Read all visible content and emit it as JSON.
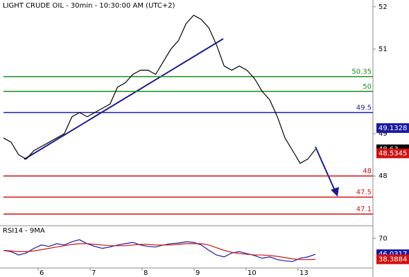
{
  "chart_data": [
    {
      "type": "line",
      "title": "LIGHT CRUDE OIL - 30min - 10:30:00 AM (UTC+2)",
      "x_labels": [
        "6",
        "7",
        "8",
        "9",
        "10",
        "13"
      ],
      "ylim": [
        46.84,
        52.16
      ],
      "yticks": [
        48,
        49,
        51,
        52
      ],
      "series": [
        {
          "color": "#000000",
          "values": [
            48.9,
            48.8,
            48.5,
            48.4,
            48.6,
            48.7,
            48.8,
            48.9,
            49.0,
            49.4,
            49.5,
            49.4,
            49.5,
            49.6,
            49.7,
            50.1,
            50.2,
            50.4,
            50.5,
            50.5,
            50.4,
            50.7,
            51.0,
            51.2,
            51.6,
            51.8,
            51.7,
            51.5,
            51.1,
            50.6,
            50.5,
            50.6,
            50.5,
            50.3,
            50.0,
            49.8,
            49.4,
            48.9,
            48.6,
            48.3,
            48.4,
            48.63
          ]
        }
      ],
      "levels": [
        {
          "value": 50.35,
          "color": "#1a8a1a"
        },
        {
          "value": 50,
          "color": "#1a8a1a"
        },
        {
          "value": 49.5,
          "color": "#1a1aa0"
        },
        {
          "value": 48,
          "color": "#d01010"
        },
        {
          "value": 47.5,
          "color": "#d01010"
        },
        {
          "value": 47.1,
          "color": "#d01010"
        }
      ],
      "tags": [
        {
          "value": 49.1328,
          "color": "#1a1aa0"
        },
        {
          "value": 48.63,
          "color": "#000000"
        },
        {
          "value": 48.5345,
          "color": "#d01010"
        }
      ]
    },
    {
      "type": "line",
      "title": "RSI14 - 9MA",
      "ylim": [
        20,
        85
      ],
      "yticks": [
        70
      ],
      "series": [
        {
          "color": "#1a1aa0",
          "values": [
            52,
            50,
            45,
            48,
            55,
            60,
            58,
            62,
            60,
            65,
            68,
            62,
            58,
            55,
            57,
            60,
            62,
            64,
            60,
            58,
            57,
            60,
            62,
            63,
            65,
            64,
            60,
            52,
            45,
            42,
            48,
            50,
            47,
            44,
            40,
            42,
            38,
            36,
            35,
            40,
            42,
            46.0317
          ]
        },
        {
          "color": "#d01010",
          "values": [
            52,
            51,
            50,
            50,
            51,
            53,
            55,
            57,
            59,
            61,
            62,
            62,
            61,
            60,
            59,
            59,
            59,
            60,
            61,
            61,
            60,
            60,
            60,
            61,
            62,
            62,
            62,
            60,
            56,
            52,
            49,
            47,
            46,
            45,
            45,
            44,
            43,
            41,
            39,
            38,
            38,
            38.3884
          ]
        }
      ],
      "tags": [
        {
          "value": 46.0317,
          "color": "#1a1aa0"
        },
        {
          "value": 38.3884,
          "color": "#d01010"
        }
      ]
    }
  ]
}
